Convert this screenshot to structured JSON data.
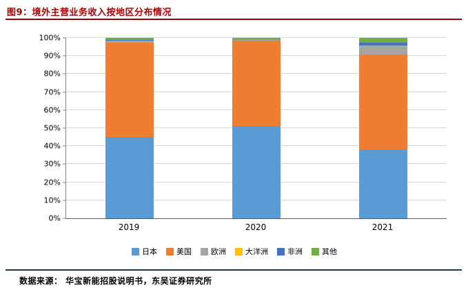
{
  "header": {
    "title": "图9：境外主营业务收入按地区分布情况"
  },
  "footer": {
    "source": "数据来源： 华宝新能招股说明书，东吴证券研究所"
  },
  "colors": {
    "title_text": "#aa0000",
    "title_rule": "#990000",
    "footer_rule": "#17375e",
    "gridline": "#d9d9d9",
    "axis_line": "#808080"
  },
  "chart_data": {
    "type": "bar",
    "stacked": true,
    "title": "境外主营业务收入按地区分布情况",
    "xlabel": "",
    "ylabel": "",
    "ylim": [
      0,
      100
    ],
    "grid": true,
    "legend_position": "bottom",
    "categories": [
      "2019",
      "2020",
      "2021"
    ],
    "yticks": [
      "0%",
      "10%",
      "20%",
      "30%",
      "40%",
      "50%",
      "60%",
      "70%",
      "80%",
      "90%",
      "100%"
    ],
    "series": [
      {
        "name": "日本",
        "color": "#5b9bd5",
        "values": [
          45.0,
          51.0,
          38.0
        ]
      },
      {
        "name": "美国",
        "color": "#ed7d31",
        "values": [
          52.5,
          47.4,
          53.0
        ]
      },
      {
        "name": "欧洲",
        "color": "#a5a5a5",
        "values": [
          0.8,
          0.3,
          4.7
        ]
      },
      {
        "name": "大洋洲",
        "color": "#ffc000",
        "values": [
          0.3,
          0.2,
          0.3
        ]
      },
      {
        "name": "非洲",
        "color": "#4472c4",
        "values": [
          0.3,
          0.1,
          1.5
        ]
      },
      {
        "name": "其他",
        "color": "#70ad47",
        "values": [
          1.1,
          1.0,
          2.5
        ]
      }
    ]
  }
}
